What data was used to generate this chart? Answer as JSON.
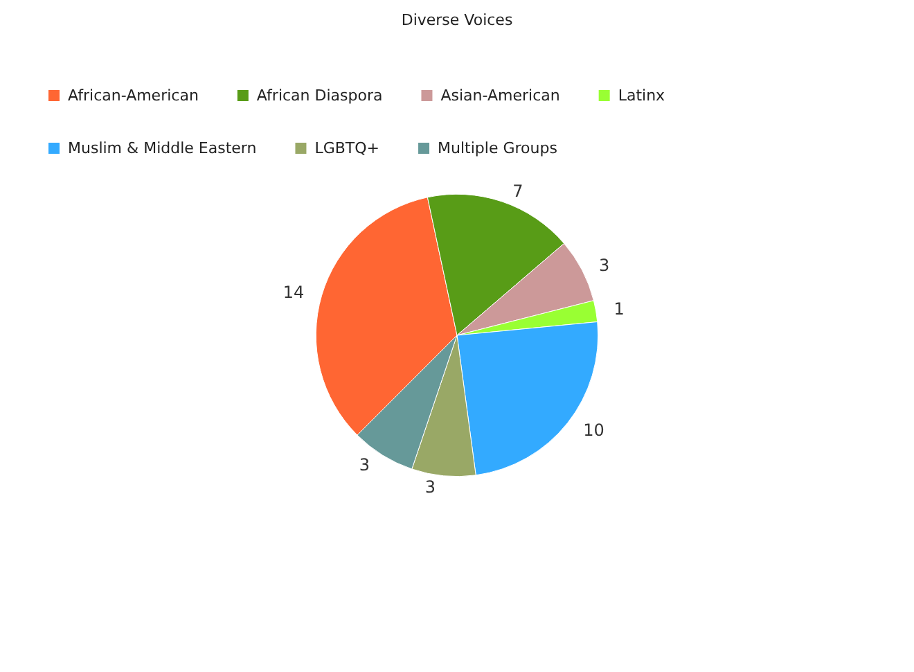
{
  "chart_data": {
    "type": "pie",
    "title": "Diverse Voices",
    "categories": [
      "African-American",
      "African Diaspora",
      "Asian-American",
      "Latinx",
      "Muslim & Middle Eastern",
      "LGBTQ+",
      "Multiple Groups"
    ],
    "values": [
      14,
      7,
      3,
      1,
      10,
      3,
      3
    ],
    "colors": [
      "#ff6633",
      "#589c17",
      "#cc9999",
      "#99ff33",
      "#33aaff",
      "#99a866",
      "#669999"
    ],
    "data_labels": true,
    "legend": "top"
  }
}
